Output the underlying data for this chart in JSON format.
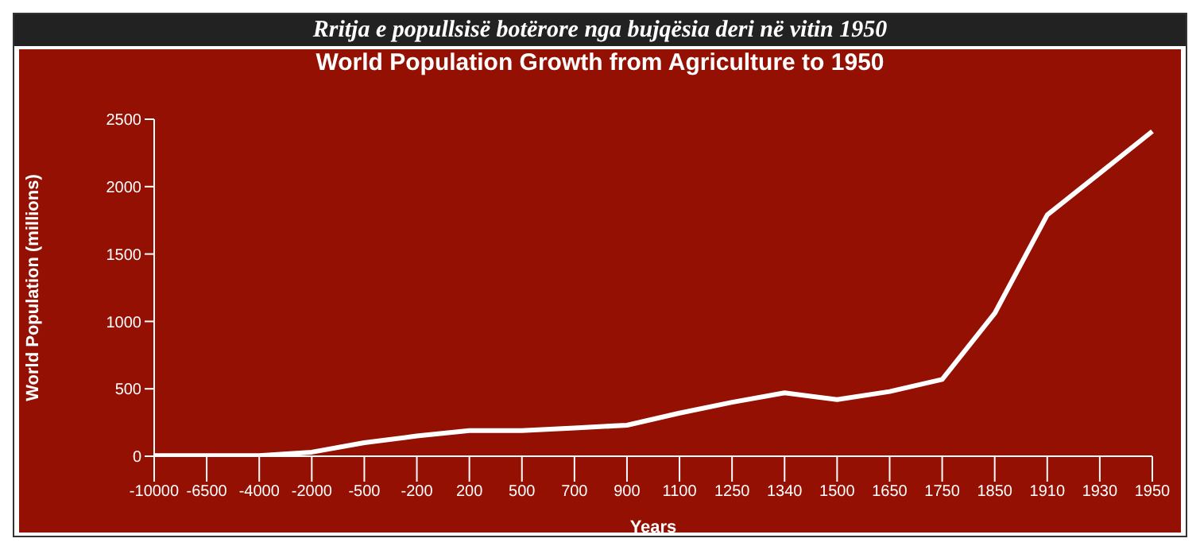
{
  "chart_data": {
    "type": "line",
    "title": "Rritja e popullsisë botërore nga bujqësia deri në vitin 1950",
    "subtitle": "World Population Growth from Agriculture to 1950",
    "xlabel": "Years",
    "ylabel": "World Population (millions)",
    "categories": [
      "-10000",
      "-6500",
      "-4000",
      "-2000",
      "-500",
      "-200",
      "200",
      "500",
      "700",
      "900",
      "1100",
      "1250",
      "1340",
      "1500",
      "1650",
      "1750",
      "1850",
      "1910",
      "1930",
      "1950"
    ],
    "series": [
      {
        "color": "#ffffff",
        "values": [
          5,
          5,
          5,
          30,
          100,
          150,
          190,
          190,
          210,
          230,
          320,
          400,
          470,
          420,
          480,
          570,
          1060,
          1790,
          2100,
          2410
        ]
      }
    ],
    "ylim": [
      0,
      2500
    ],
    "yticks": [
      0,
      500,
      1000,
      1500,
      2000,
      2500
    ],
    "grid": false,
    "legend": false,
    "marker": "none",
    "line_style": "solid"
  }
}
